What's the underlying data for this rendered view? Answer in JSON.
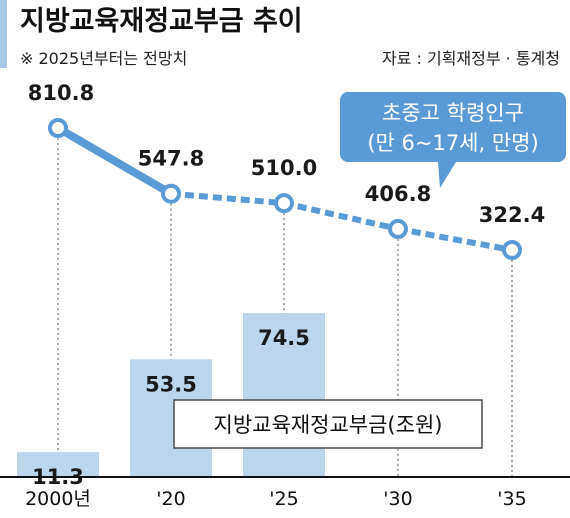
{
  "header": {
    "title": "지방교육재정교부금 추이",
    "note": "※ 2025년부터는 전망치",
    "source": "자료 : 기획재정부 · 통계청"
  },
  "colors": {
    "bar": "#bcd5ea",
    "line": "#5b9bd5",
    "accent": "#5b9bd5",
    "title_bar": "#a8c8e4"
  },
  "chart_data": {
    "type": "bar+line",
    "categories": [
      "2000년",
      "'20",
      "'25",
      "'30",
      "'35"
    ],
    "series": [
      {
        "name": "지방교육재정교부금(조원)",
        "type": "bar",
        "values": [
          11.3,
          53.5,
          74.5,
          null,
          null
        ],
        "labels": [
          "11.3",
          "53.5",
          "74.5",
          "",
          ""
        ]
      },
      {
        "name": "초중고 학령인구 (만 6~17세, 만명)",
        "type": "line",
        "values": [
          810.8,
          547.8,
          510.0,
          406.8,
          322.4
        ],
        "labels": [
          "810.8",
          "547.8",
          "510.0",
          "406.8",
          "322.4"
        ],
        "dashed_from_index": 1
      }
    ],
    "bar_legend": "지방교육재정교부금(조원)",
    "line_callout": [
      "초중고 학령인구",
      "(만 6~17세, 만명)"
    ]
  }
}
